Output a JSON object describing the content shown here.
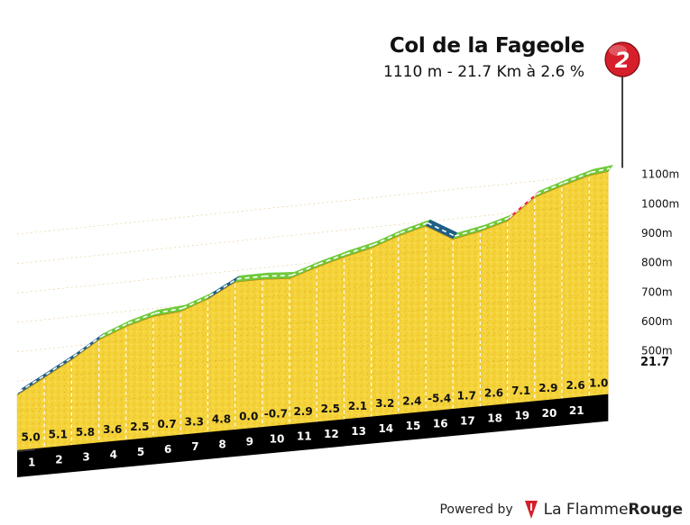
{
  "climb": {
    "name": "Col de la Fageole",
    "subtitle": "1110 m - 21.7 Km à 2.6 %",
    "marker_number": "2"
  },
  "footer": {
    "powered_by": "Powered by",
    "brand_regular": "La Flamme",
    "brand_bold": "Rouge"
  },
  "colors": {
    "fill": "#f5d33a",
    "green": "#6fca3a",
    "blue": "#1e5f86",
    "red": "#e8263a",
    "marker": "#d61f2a",
    "km_band": "#000000",
    "base_side": "#a87d1a"
  },
  "chart_data": {
    "type": "area",
    "title": "Col de la Fageole",
    "subtitle": "1110 m - 21.7 Km à 2.6 %",
    "x_unit": "km",
    "km_labels": [
      "1",
      "2",
      "3",
      "4",
      "5",
      "6",
      "7",
      "8",
      "9",
      "10",
      "11",
      "12",
      "13",
      "14",
      "15",
      "16",
      "17",
      "18",
      "19",
      "20",
      "21"
    ],
    "end_label": "21.7",
    "gradients": [
      "5.0",
      "5.1",
      "5.8",
      "3.6",
      "2.5",
      "0.7",
      "3.3",
      "4.8",
      "0.0",
      "-0.7",
      "2.9",
      "2.5",
      "2.1",
      "3.2",
      "2.4",
      "-5.4",
      "1.7",
      "2.6",
      "7.1",
      "2.9",
      "2.6",
      "1.0"
    ],
    "segment_colors": [
      "blue",
      "blue",
      "blue",
      "green",
      "green",
      "green",
      "green",
      "blue",
      "green",
      "green",
      "green",
      "green",
      "green",
      "green",
      "green",
      "blue",
      "green",
      "green",
      "red",
      "green",
      "green",
      "green"
    ],
    "altitude_ticks": [
      "1100m",
      "1000m",
      "900m",
      "800m",
      "700m",
      "600m",
      "500m"
    ],
    "altitude_values": [
      1100,
      1000,
      900,
      800,
      700,
      600,
      500
    ],
    "distance_km": [
      0,
      1,
      2,
      3,
      4,
      5,
      6,
      7,
      8,
      9,
      10,
      11,
      12,
      13,
      14,
      15,
      16,
      17,
      18,
      19,
      20,
      21,
      21.7
    ],
    "elevation_m": [
      553,
      603,
      654,
      712,
      748,
      773,
      780,
      813,
      861,
      861,
      854,
      883,
      908,
      929,
      961,
      985,
      931,
      948,
      974,
      1045,
      1074,
      1100,
      1107
    ],
    "ylim": [
      500,
      1100
    ]
  }
}
